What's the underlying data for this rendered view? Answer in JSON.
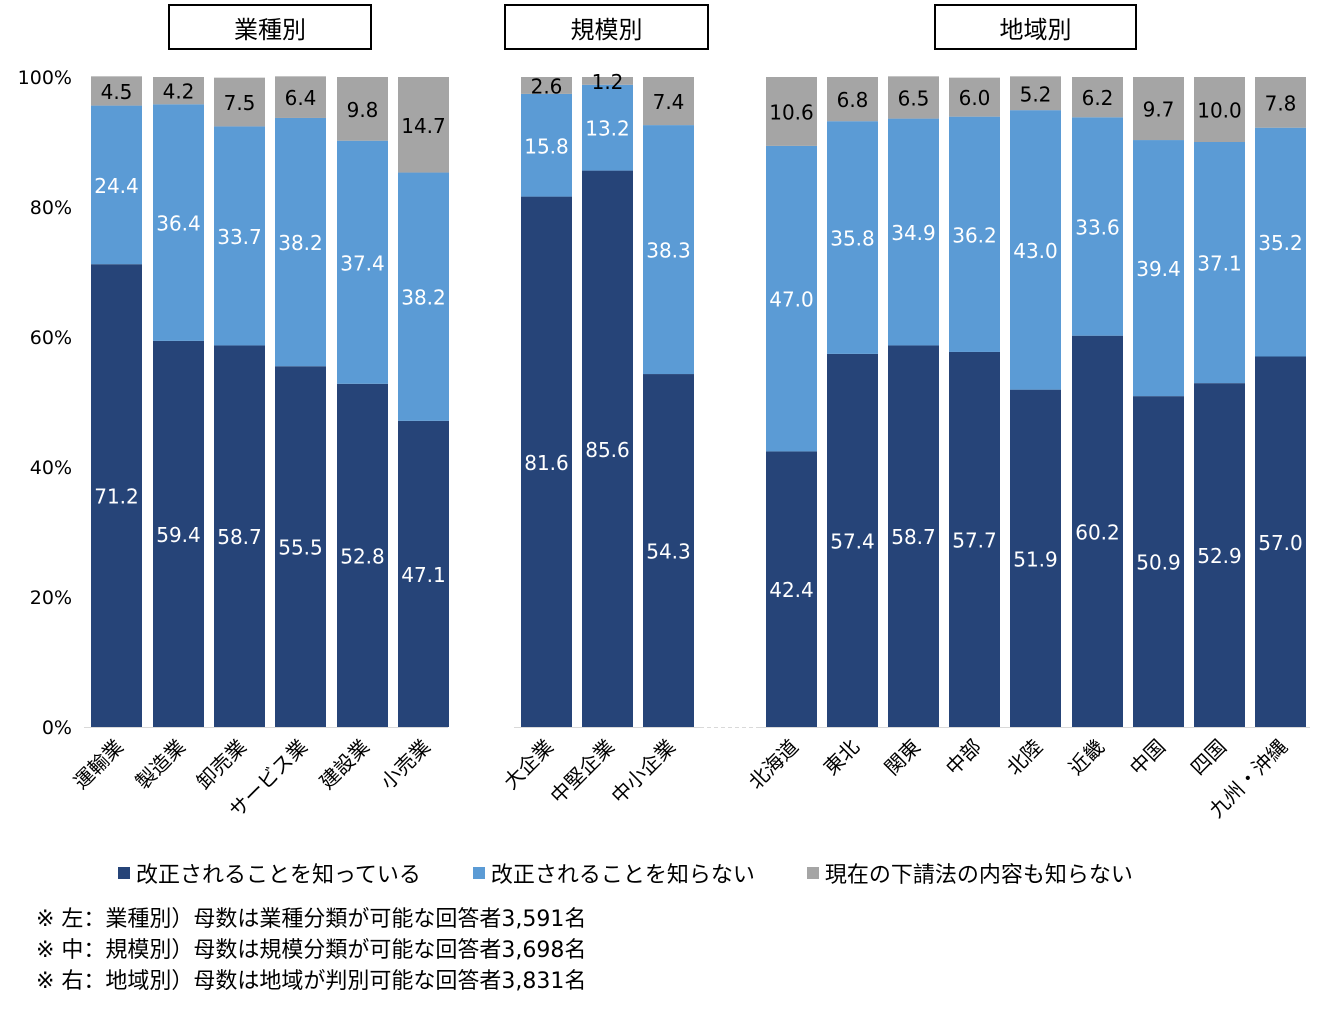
{
  "chart_data": {
    "type": "bar",
    "stacked": true,
    "percent": true,
    "groups": [
      {
        "title": "業種別",
        "categories": [
          "運輸業",
          "製造業",
          "卸売業",
          "サービス業",
          "建設業",
          "小売業"
        ]
      },
      {
        "title": "規模別",
        "categories": [
          "大企業",
          "中堅企業",
          "中小企業"
        ]
      },
      {
        "title": "地域別",
        "categories": [
          "北海道",
          "東北",
          "関東",
          "中部",
          "北陸",
          "近畿",
          "中国",
          "四国",
          "九州・沖縄"
        ]
      }
    ],
    "categories": [
      "運輸業",
      "製造業",
      "卸売業",
      "サービス業",
      "建設業",
      "小売業",
      "大企業",
      "中堅企業",
      "中小企業",
      "北海道",
      "東北",
      "関東",
      "中部",
      "北陸",
      "近畿",
      "中国",
      "四国",
      "九州・沖縄"
    ],
    "series": [
      {
        "name": "改正されることを知っている",
        "color": "#264478",
        "values": [
          71.2,
          59.4,
          58.7,
          55.5,
          52.8,
          47.1,
          81.6,
          85.6,
          54.3,
          42.4,
          57.4,
          58.7,
          57.7,
          51.9,
          60.2,
          50.9,
          52.9,
          57.0
        ],
        "labels": [
          "71.2",
          "59.4",
          "58.7",
          "55.5",
          "52.8",
          "47.1",
          "81.6",
          "85.6",
          "54.3",
          "42.4",
          "57.4",
          "58.7",
          "57.7",
          "51.9",
          "60.2",
          "50.9",
          "52.9",
          "57.0"
        ]
      },
      {
        "name": "改正されることを知らない",
        "color": "#5B9BD5",
        "values": [
          24.4,
          36.4,
          33.7,
          38.2,
          37.4,
          38.2,
          15.8,
          13.2,
          38.3,
          47.0,
          35.8,
          34.9,
          36.2,
          43.0,
          33.6,
          39.4,
          37.1,
          35.2
        ],
        "labels": [
          "24.4",
          "36.4",
          "33.7",
          "38.2",
          "37.4",
          "38.2",
          "15.8",
          "13.2",
          "38.3",
          "47.0",
          "35.8",
          "34.9",
          "36.2",
          "43.0",
          "33.6",
          "39.4",
          "37.1",
          "35.2"
        ]
      },
      {
        "name": "現在の下請法の内容も知らない",
        "color": "#A5A5A5",
        "values": [
          4.5,
          4.2,
          7.5,
          6.4,
          9.8,
          14.7,
          2.6,
          1.2,
          7.4,
          10.6,
          6.8,
          6.5,
          6.0,
          5.2,
          6.2,
          9.7,
          10.0,
          7.8
        ],
        "labels": [
          "4.5",
          "4.2",
          "7.5",
          "6.4",
          "9.8",
          "14.7",
          "2.6",
          "1.2",
          "7.4",
          "10.6",
          "6.8",
          "6.5",
          "6.0",
          "5.2",
          "6.2",
          "9.7",
          "10.0",
          "7.8"
        ]
      }
    ],
    "yticks": [
      "0%",
      "20%",
      "40%",
      "60%",
      "80%",
      "100%"
    ],
    "ylim": [
      0,
      100
    ],
    "legend_position": "bottom",
    "notes": [
      "※ 左：業種別）母数は業種分類が可能な回答者3,591名",
      "※ 中：規模別）母数は規模分類が可能な回答者3,698名",
      "※ 右：地域別）母数は地域が判別可能な回答者3,831名"
    ]
  }
}
